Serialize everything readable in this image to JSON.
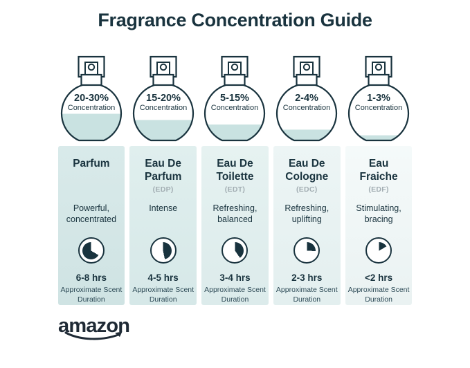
{
  "title": "Fragrance Concentration Guide",
  "concentration_label": "Concentration",
  "duration_caption": "Approximate Scent Duration",
  "brand": {
    "logo_text": "amazon"
  },
  "colors": {
    "ink": "#19333e",
    "bottle_liquid": "#c9e2e1",
    "abbr_gray": "#a2adb2",
    "caption_text": "#2d4a56",
    "logo": "#1f2a35",
    "background": "#ffffff"
  },
  "columns": [
    {
      "range": "20-30%",
      "name": "Parfum",
      "abbr": "",
      "desc": "Powerful, concentrated",
      "duration": "6-8 hrs",
      "fill_percent": 47,
      "clock_start_deg": 120,
      "clock_end_deg": 360,
      "bg_top": "#d9eaea",
      "bg_bottom": "#cfe3e3"
    },
    {
      "range": "15-20%",
      "name": "Eau De Parfum",
      "abbr": "(EDP)",
      "desc": "Intense",
      "duration": "4-5 hrs",
      "fill_percent": 36,
      "clock_start_deg": 0,
      "clock_end_deg": 168,
      "bg_top": "#e0efee",
      "bg_bottom": "#d6e8e8"
    },
    {
      "range": "5-15%",
      "name": "Eau De Toilette",
      "abbr": "(EDT)",
      "desc": "Refreshing, balanced",
      "duration": "3-4 hrs",
      "fill_percent": 28,
      "clock_start_deg": 0,
      "clock_end_deg": 145,
      "bg_top": "#e6f2f1",
      "bg_bottom": "#dcebeb"
    },
    {
      "range": "2-4%",
      "name": "Eau De Cologne",
      "abbr": "(EDC)",
      "desc": "Refreshing, uplifting",
      "duration": "2-3 hrs",
      "fill_percent": 19,
      "clock_start_deg": 0,
      "clock_end_deg": 92,
      "bg_top": "#edf5f5",
      "bg_bottom": "#e3efef"
    },
    {
      "range": "1-3%",
      "name": "Eau Fraiche",
      "abbr": "(EDF)",
      "desc": "Stimulating, bracing",
      "duration": "<2 hrs",
      "fill_percent": 9,
      "clock_start_deg": 0,
      "clock_end_deg": 60,
      "bg_top": "#f5fafa",
      "bg_bottom": "#eaf2f2"
    }
  ]
}
